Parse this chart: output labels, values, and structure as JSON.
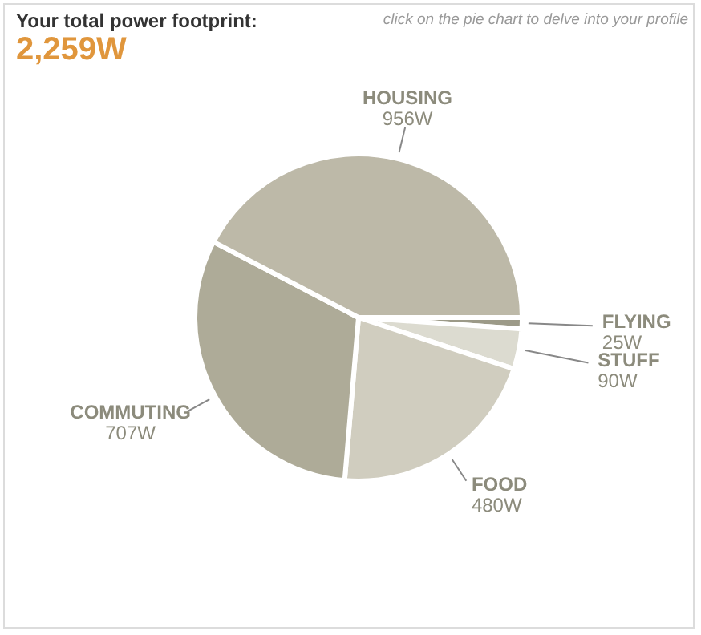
{
  "chart_data": {
    "type": "pie",
    "title": "Your total power footprint:",
    "subtitle": "2,259W",
    "annotations": [
      "click on the pie chart to delve into your profile"
    ],
    "categories": [
      "FLYING",
      "STUFF",
      "FOOD",
      "COMMUTING",
      "HOUSING"
    ],
    "values": [
      25,
      90,
      480,
      707,
      956
    ],
    "value_labels": [
      "25W",
      "90W",
      "480W",
      "707W",
      "956W"
    ],
    "colors": [
      "#9c9a88",
      "#dcdbd0",
      "#d0cdbf",
      "#aeab98",
      "#bdb9a8"
    ],
    "legend": false
  }
}
